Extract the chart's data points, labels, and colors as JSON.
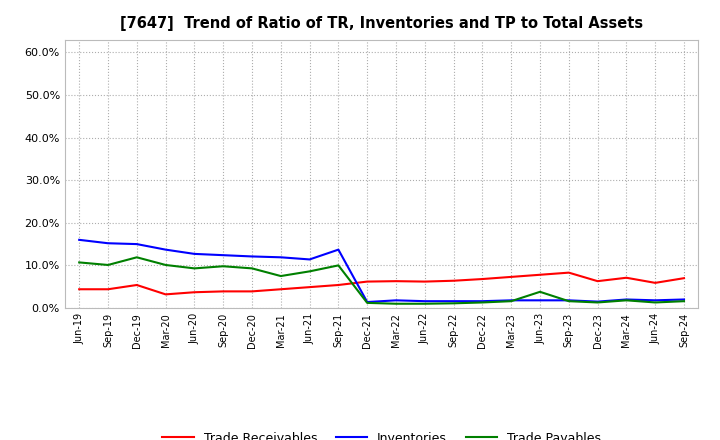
{
  "title": "[7647]  Trend of Ratio of TR, Inventories and TP to Total Assets",
  "x_labels": [
    "Jun-19",
    "Sep-19",
    "Dec-19",
    "Mar-20",
    "Jun-20",
    "Sep-20",
    "Dec-20",
    "Mar-21",
    "Jun-21",
    "Sep-21",
    "Dec-21",
    "Mar-22",
    "Jun-22",
    "Sep-22",
    "Dec-22",
    "Mar-23",
    "Jun-23",
    "Sep-23",
    "Dec-23",
    "Mar-24",
    "Jun-24",
    "Sep-24"
  ],
  "trade_receivables": [
    0.044,
    0.044,
    0.054,
    0.032,
    0.037,
    0.039,
    0.039,
    0.044,
    0.049,
    0.054,
    0.062,
    0.063,
    0.062,
    0.064,
    0.068,
    0.073,
    0.078,
    0.083,
    0.063,
    0.071,
    0.059,
    0.07
  ],
  "inventories": [
    0.16,
    0.152,
    0.15,
    0.137,
    0.127,
    0.124,
    0.121,
    0.119,
    0.114,
    0.137,
    0.014,
    0.018,
    0.016,
    0.016,
    0.016,
    0.018,
    0.018,
    0.018,
    0.015,
    0.02,
    0.018,
    0.02
  ],
  "trade_payables": [
    0.107,
    0.101,
    0.119,
    0.101,
    0.093,
    0.098,
    0.093,
    0.075,
    0.086,
    0.1,
    0.012,
    0.01,
    0.01,
    0.011,
    0.013,
    0.016,
    0.038,
    0.016,
    0.013,
    0.018,
    0.013,
    0.016
  ],
  "tr_color": "#ff0000",
  "inv_color": "#0000ff",
  "tp_color": "#008000",
  "ylim": [
    0.0,
    0.63
  ],
  "yticks": [
    0.0,
    0.1,
    0.2,
    0.3,
    0.4,
    0.5,
    0.6
  ],
  "background_color": "#ffffff",
  "grid_color": "#999999",
  "legend_labels": [
    "Trade Receivables",
    "Inventories",
    "Trade Payables"
  ]
}
